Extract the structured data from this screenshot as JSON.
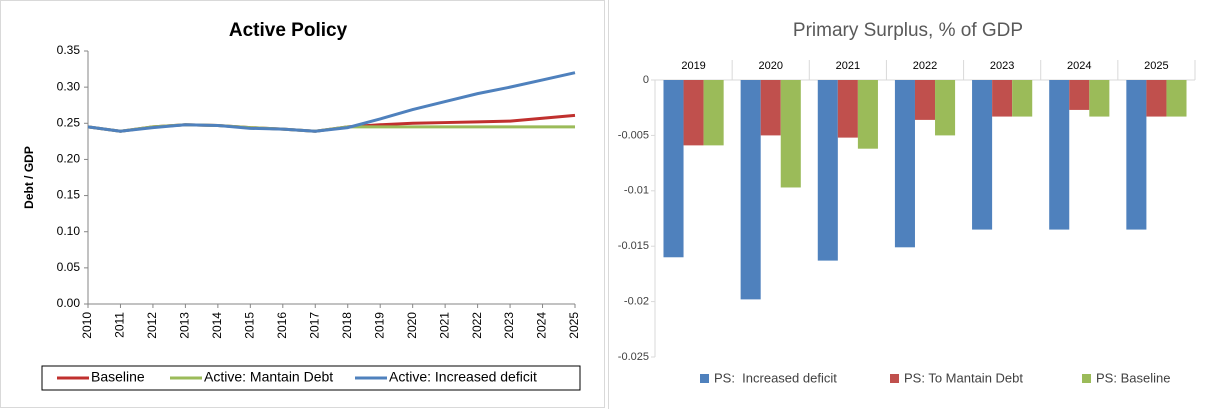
{
  "chart_data": [
    {
      "type": "line",
      "title": "Active Policy",
      "y_label": "Debt / GDP",
      "categories": [
        "2010",
        "2011",
        "2012",
        "2013",
        "2014",
        "2015",
        "2016",
        "2017",
        "2018",
        "2019",
        "2020",
        "2021",
        "2022",
        "2023",
        "2024",
        "2025"
      ],
      "series": [
        {
          "name": "Baseline",
          "color": "#c0302e",
          "values": [
            0.245,
            0.239,
            0.245,
            0.248,
            0.247,
            0.244,
            0.242,
            0.239,
            0.245,
            0.248,
            0.25,
            0.251,
            0.252,
            0.253,
            0.257,
            0.261
          ]
        },
        {
          "name": "Active: Mantain Debt",
          "color": "#9bbb59",
          "values": [
            0.245,
            0.239,
            0.245,
            0.248,
            0.247,
            0.244,
            0.242,
            0.239,
            0.245,
            0.245,
            0.245,
            0.245,
            0.245,
            0.245,
            0.245,
            0.245
          ]
        },
        {
          "name": "Active: Increased deficit",
          "color": "#4f81bd",
          "values": [
            0.245,
            0.239,
            0.244,
            0.248,
            0.247,
            0.243,
            0.242,
            0.239,
            0.244,
            0.256,
            0.269,
            0.28,
            0.291,
            0.3,
            0.31,
            0.32
          ]
        }
      ],
      "ylim": [
        0,
        0.35
      ],
      "yticks": [
        {
          "value": 0,
          "label": "0.00"
        },
        0.05,
        {
          "value": 0.1,
          "label": "0.10"
        },
        0.15,
        {
          "value": 0.2,
          "label": "0.20"
        },
        0.25,
        {
          "value": 0.3,
          "label": "0.30"
        },
        0.35
      ],
      "legend": "bottom"
    },
    {
      "type": "bar",
      "title": "Primary Surplus, % of GDP",
      "categories": [
        "2019",
        "2020",
        "2021",
        "2022",
        "2023",
        "2024",
        "2025"
      ],
      "series": [
        {
          "name": "PS:  Increased deficit",
          "color": "#4f81bd",
          "values": [
            -0.016,
            -0.0198,
            -0.0163,
            -0.0151,
            -0.0135,
            -0.0135,
            -0.0135
          ]
        },
        {
          "name": "PS: To Mantain Debt",
          "color": "#c0504d",
          "values": [
            -0.0059,
            -0.005,
            -0.0052,
            -0.0036,
            -0.0033,
            -0.0027,
            -0.0033
          ]
        },
        {
          "name": "PS: Baseline",
          "color": "#9bbb59",
          "values": [
            -0.0059,
            -0.0097,
            -0.0062,
            -0.005,
            -0.0033,
            -0.0033,
            -0.0033
          ]
        }
      ],
      "ylim": [
        -0.025,
        0
      ],
      "yticks": [
        0,
        -0.005,
        -0.01,
        -0.015,
        -0.02,
        -0.025
      ],
      "legend": "bottom"
    }
  ]
}
